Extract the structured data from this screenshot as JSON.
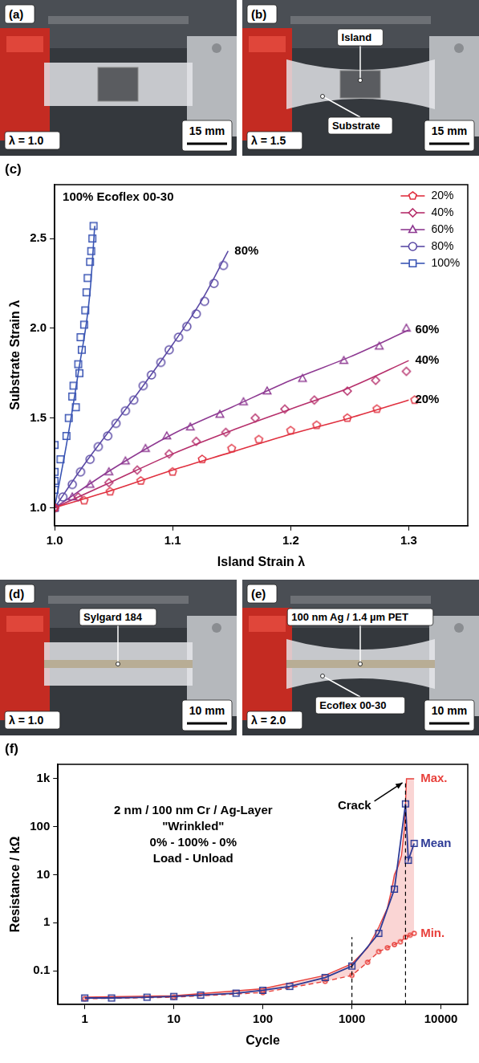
{
  "panels": [
    {
      "letter": "(a)",
      "lambda": "λ = 1.0",
      "scale_bar": "15 mm",
      "labels": []
    },
    {
      "letter": "(b)",
      "lambda": "λ = 1.5",
      "scale_bar": "15 mm",
      "labels": [
        "Island",
        "Substrate"
      ]
    },
    {
      "letter": "(d)",
      "lambda": "λ = 1.0",
      "scale_bar": "10 mm",
      "labels": [
        "Sylgard 184"
      ]
    },
    {
      "letter": "(e)",
      "lambda": "λ = 2.0",
      "scale_bar": "10 mm",
      "labels": [
        "100 nm Ag / 1.4 µm PET",
        "Ecoflex 00-30"
      ]
    }
  ],
  "chart_data": [
    {
      "type": "scatter",
      "panel": "(c)",
      "annotation": "100% Ecoflex 00-30",
      "end_labels": [
        "80%",
        "60%",
        "40%",
        "20%"
      ],
      "x_label": "Island Strain λ",
      "y_label": "Substrate Strain λ",
      "xlim": [
        1.0,
        1.35
      ],
      "xticks": [
        {
          "value": 1,
          "label": "1.0"
        },
        1.1,
        1.2,
        1.3
      ],
      "ylim": [
        0.9,
        2.8
      ],
      "yticks": [
        {
          "value": 1,
          "label": "1.0"
        },
        1.5,
        {
          "value": 2,
          "label": "2.0"
        },
        2.5
      ],
      "grid": false,
      "legend": "top-right",
      "series": [
        {
          "name": "20%",
          "color": "#e0303f",
          "marker": "pentagon",
          "line_style": "solid",
          "x": [
            1.0,
            1.025,
            1.047,
            1.073,
            1.1,
            1.125,
            1.15,
            1.173,
            1.2,
            1.222,
            1.248,
            1.273,
            1.305
          ],
          "values": [
            1.0,
            1.04,
            1.09,
            1.15,
            1.2,
            1.27,
            1.33,
            1.38,
            1.43,
            1.46,
            1.5,
            1.55,
            1.6
          ],
          "fit_x": [
            1.0,
            1.05,
            1.1,
            1.15,
            1.2,
            1.25,
            1.3
          ],
          "fit_values": [
            1.0,
            1.1,
            1.21,
            1.31,
            1.41,
            1.5,
            1.6
          ]
        },
        {
          "name": "40%",
          "color": "#b62f6b",
          "marker": "diamond",
          "line_style": "solid",
          "x": [
            1.0,
            1.02,
            1.046,
            1.07,
            1.097,
            1.12,
            1.145,
            1.17,
            1.195,
            1.22,
            1.248,
            1.272,
            1.298
          ],
          "values": [
            1.0,
            1.06,
            1.14,
            1.21,
            1.3,
            1.37,
            1.42,
            1.5,
            1.55,
            1.6,
            1.65,
            1.71,
            1.76
          ],
          "fit_x": [
            1.0,
            1.05,
            1.1,
            1.15,
            1.2,
            1.25,
            1.3
          ],
          "fit_values": [
            1.0,
            1.15,
            1.3,
            1.43,
            1.55,
            1.67,
            1.82
          ]
        },
        {
          "name": "60%",
          "color": "#8e3a92",
          "marker": "triangle",
          "line_style": "solid",
          "x": [
            1.0,
            1.015,
            1.03,
            1.046,
            1.06,
            1.077,
            1.095,
            1.115,
            1.14,
            1.16,
            1.18,
            1.21,
            1.245,
            1.275,
            1.298
          ],
          "values": [
            1.0,
            1.06,
            1.13,
            1.2,
            1.26,
            1.33,
            1.4,
            1.45,
            1.52,
            1.59,
            1.65,
            1.72,
            1.82,
            1.9,
            2.0
          ],
          "fit_x": [
            1.0,
            1.05,
            1.1,
            1.15,
            1.2,
            1.25,
            1.3
          ],
          "fit_values": [
            1.0,
            1.22,
            1.41,
            1.56,
            1.71,
            1.84,
            1.99
          ]
        },
        {
          "name": "80%",
          "color": "#5b4aa5",
          "marker": "circle",
          "line_style": "solid",
          "x": [
            1.0,
            1.007,
            1.015,
            1.022,
            1.03,
            1.037,
            1.045,
            1.052,
            1.06,
            1.067,
            1.075,
            1.082,
            1.09,
            1.097,
            1.105,
            1.112,
            1.12,
            1.127,
            1.135,
            1.143
          ],
          "values": [
            1.0,
            1.06,
            1.13,
            1.2,
            1.27,
            1.34,
            1.4,
            1.47,
            1.54,
            1.6,
            1.68,
            1.74,
            1.81,
            1.88,
            1.95,
            2.01,
            2.08,
            2.15,
            2.25,
            2.35
          ],
          "fit_x": [
            1.0,
            1.025,
            1.05,
            1.075,
            1.1,
            1.125,
            1.147
          ],
          "fit_values": [
            1.0,
            1.24,
            1.46,
            1.68,
            1.91,
            2.16,
            2.43
          ]
        },
        {
          "name": "100%",
          "color": "#3a55b4",
          "marker": "square",
          "line_style": "solid",
          "x": [
            1.0,
            1.0,
            1.0,
            1.0,
            1.0,
            1.005,
            1.01,
            1.012,
            1.015,
            1.016,
            1.018,
            1.02,
            1.021,
            1.022,
            1.023,
            1.025,
            1.026,
            1.027,
            1.028,
            1.03,
            1.031,
            1.032,
            1.033
          ],
          "values": [
            1.0,
            1.1,
            1.15,
            1.2,
            1.35,
            1.27,
            1.4,
            1.5,
            1.62,
            1.68,
            1.56,
            1.8,
            1.75,
            1.95,
            1.88,
            2.02,
            2.1,
            2.2,
            2.28,
            2.37,
            2.43,
            2.5,
            2.57
          ],
          "fit_x": [
            1.0,
            1.01,
            1.02,
            1.03,
            1.034
          ],
          "fit_values": [
            1.0,
            1.35,
            1.75,
            2.2,
            2.57
          ]
        }
      ]
    },
    {
      "type": "line",
      "panel": "(f)",
      "log": true,
      "x_label": "Cycle",
      "y_label": "Resistance / kΩ",
      "xlim": [
        0.5,
        20000
      ],
      "xticks": [
        1,
        10,
        100,
        1000,
        10000
      ],
      "ylim": [
        0.02,
        2000
      ],
      "yticks": [
        0.1,
        1,
        10,
        100,
        {
          "value": 1000,
          "label": "1k"
        }
      ],
      "grid": false,
      "note_lines": [
        "2 nm / 100 nm Cr / Ag-Layer",
        "\"Wrinkled\"",
        "0% - 100% - 0%",
        "Load - Unload"
      ],
      "callout": "Crack",
      "end_labels": [
        "Max.",
        "Mean",
        "Min."
      ],
      "vlines": [
        {
          "x": 1000,
          "top": 0.5
        },
        {
          "x": 4000,
          "top": 800
        }
      ],
      "series": [
        {
          "name": "Max.",
          "type": "area",
          "color": "#e8413c",
          "marker": "none",
          "line_style": "solid",
          "x": [
            1,
            10,
            100,
            500,
            1000,
            1500,
            2000,
            2500,
            2800,
            3000,
            3300,
            3600,
            3900,
            4100,
            4300,
            4500,
            4700,
            5000
          ],
          "values": [
            0.028,
            0.03,
            0.042,
            0.08,
            0.14,
            0.3,
            0.8,
            2,
            5,
            10,
            15,
            25,
            100,
            1000,
            1000,
            1000,
            1000,
            1000
          ]
        },
        {
          "name": "Mean",
          "color": "#2e3b96",
          "marker": "square",
          "line_style": "solid",
          "x": [
            1,
            2,
            5,
            10,
            20,
            50,
            100,
            200,
            500,
            1000,
            2000,
            3000,
            4000,
            4300,
            5000
          ],
          "values": [
            0.027,
            0.027,
            0.028,
            0.029,
            0.031,
            0.034,
            0.039,
            0.047,
            0.072,
            0.125,
            0.6,
            5,
            300,
            20,
            45
          ]
        },
        {
          "name": "Min.",
          "type": "area",
          "color": "#e8413c",
          "marker": "circle",
          "line_style": "dashed",
          "x": [
            1,
            10,
            100,
            500,
            1000,
            1500,
            2000,
            2500,
            3000,
            3500,
            4000,
            4500,
            5000
          ],
          "values": [
            0.026,
            0.028,
            0.035,
            0.06,
            0.08,
            0.15,
            0.25,
            0.3,
            0.35,
            0.4,
            0.5,
            0.55,
            0.6
          ]
        }
      ]
    }
  ]
}
